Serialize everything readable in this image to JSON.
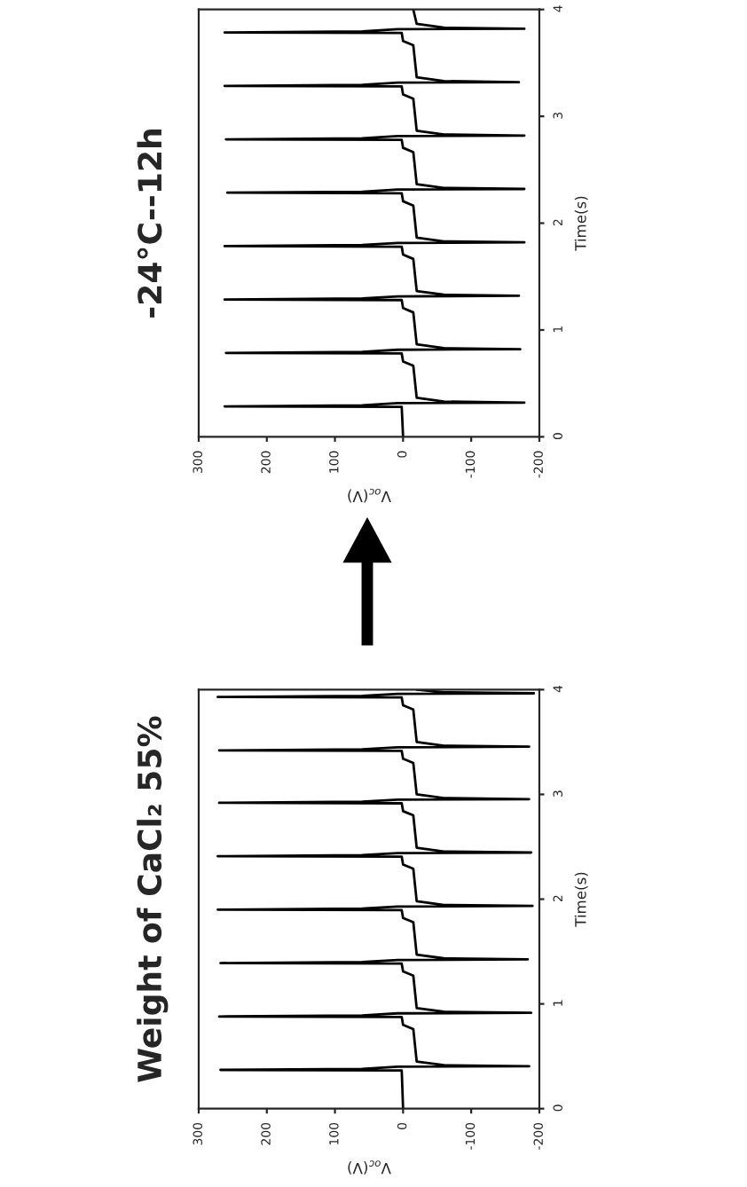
{
  "chart_data": [
    {
      "type": "line",
      "orientation": "horizontal",
      "title": "Weight of CaCl₂ 55%",
      "ylabel": "Time(s)",
      "xlabel": "V$_{oc}$(V)",
      "ylim": [
        0,
        4
      ],
      "yticks": [
        0,
        1,
        2,
        3,
        4
      ],
      "xlim": [
        300,
        -200
      ],
      "xticks": [
        300,
        200,
        100,
        0,
        -100,
        -200
      ],
      "grid": false,
      "legend": false,
      "marker": "none",
      "line_style": "solid",
      "series": [
        {
          "color": "#000000",
          "x": [
            0,
            0.365,
            0.37,
            0.38,
            0.4,
            0.405,
            0.415,
            0.45,
            0.76,
            0.8,
            0.875,
            0.88,
            0.89,
            0.91,
            0.915,
            0.925,
            0.96,
            1.27,
            1.31,
            1.385,
            1.39,
            1.4,
            1.42,
            1.425,
            1.435,
            1.47,
            1.78,
            1.82,
            1.895,
            1.9,
            1.91,
            1.93,
            1.935,
            1.945,
            1.98,
            2.29,
            2.33,
            2.405,
            2.41,
            2.42,
            2.44,
            2.445,
            2.455,
            2.49,
            2.8,
            2.84,
            2.915,
            2.92,
            2.93,
            2.95,
            2.955,
            2.965,
            3.0,
            3.3,
            3.34,
            3.415,
            3.42,
            3.43,
            3.45,
            3.455,
            3.465,
            3.5,
            3.81,
            3.85,
            3.925,
            3.93,
            3.94,
            3.96,
            3.965,
            3.975,
            4.0
          ],
          "values": [
            0,
            2,
            268,
            60,
            8,
            -185,
            -60,
            -20,
            -15,
            0,
            2,
            270,
            60,
            8,
            -188,
            -60,
            -20,
            -15,
            0,
            2,
            268,
            60,
            8,
            -183,
            -60,
            -20,
            -15,
            0,
            2,
            272,
            60,
            8,
            -190,
            -60,
            -20,
            -15,
            0,
            2,
            272,
            60,
            8,
            -188,
            -60,
            -20,
            -15,
            0,
            2,
            270,
            60,
            8,
            -185,
            -60,
            -20,
            -15,
            0,
            2,
            270,
            60,
            8,
            -185,
            -60,
            -20,
            -15,
            0,
            2,
            272,
            60,
            8,
            -192,
            -60,
            -20
          ]
        }
      ]
    },
    {
      "type": "line",
      "orientation": "horizontal",
      "title": "-24°C--12h",
      "ylabel": "Time(s)",
      "xlabel": "V$_{oc}$(V)",
      "ylim": [
        0,
        4
      ],
      "yticks": [
        0,
        1,
        2,
        3,
        4
      ],
      "xlim": [
        300,
        -200
      ],
      "xticks": [
        300,
        200,
        100,
        0,
        -100,
        -200
      ],
      "grid": false,
      "legend": false,
      "marker": "none",
      "line_style": "solid",
      "series": [
        {
          "color": "#000000",
          "x": [
            0,
            0.28,
            0.285,
            0.295,
            0.315,
            0.32,
            0.33,
            0.365,
            0.665,
            0.705,
            0.78,
            0.785,
            0.795,
            0.815,
            0.82,
            0.83,
            0.865,
            1.165,
            1.205,
            1.28,
            1.285,
            1.295,
            1.315,
            1.32,
            1.33,
            1.365,
            1.665,
            1.705,
            1.78,
            1.785,
            1.795,
            1.815,
            1.82,
            1.83,
            1.865,
            2.165,
            2.205,
            2.28,
            2.285,
            2.295,
            2.315,
            2.32,
            2.33,
            2.365,
            2.665,
            2.705,
            2.78,
            2.785,
            2.795,
            2.815,
            2.82,
            2.83,
            2.865,
            3.165,
            3.205,
            3.28,
            3.285,
            3.295,
            3.315,
            3.32,
            3.33,
            3.365,
            3.665,
            3.705,
            3.78,
            3.785,
            3.795,
            3.815,
            3.82,
            3.83,
            3.865,
            4.0
          ],
          "values": [
            0,
            2,
            262,
            60,
            8,
            -178,
            -60,
            -20,
            -15,
            0,
            2,
            260,
            60,
            8,
            -172,
            -60,
            -20,
            -15,
            0,
            2,
            262,
            60,
            8,
            -170,
            -60,
            -20,
            -15,
            0,
            2,
            262,
            60,
            8,
            -178,
            -60,
            -20,
            -15,
            0,
            2,
            258,
            60,
            8,
            -178,
            -60,
            -20,
            -15,
            0,
            2,
            260,
            60,
            8,
            -178,
            -60,
            -20,
            -15,
            0,
            2,
            262,
            60,
            8,
            -170,
            -60,
            -20,
            -15,
            0,
            2,
            262,
            60,
            8,
            -178,
            -60,
            -20,
            -15
          ]
        }
      ]
    }
  ]
}
